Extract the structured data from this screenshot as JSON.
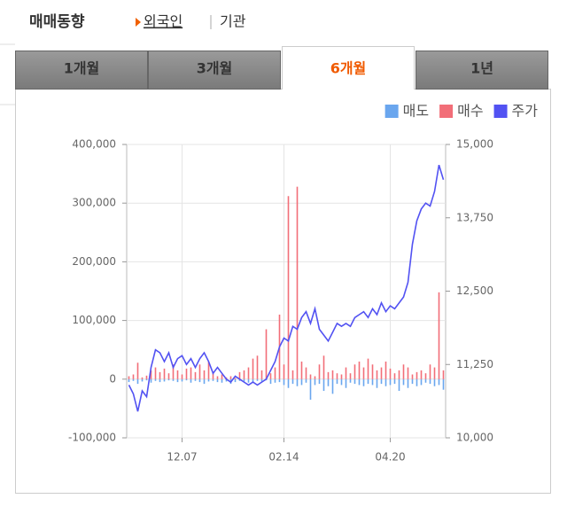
{
  "header": {
    "title": "매매동향",
    "investor_tabs": [
      "외국인",
      "기관"
    ]
  },
  "period_tabs": [
    "1개월",
    "3개월",
    "6개월",
    "1년"
  ],
  "chart_data": {
    "type": "bar",
    "categories": [
      null,
      null,
      null,
      null,
      null,
      null,
      null,
      null,
      null,
      null,
      null,
      null,
      "12.07",
      null,
      null,
      null,
      null,
      null,
      null,
      null,
      null,
      null,
      null,
      null,
      null,
      null,
      null,
      null,
      null,
      null,
      null,
      null,
      null,
      null,
      null,
      "02.14",
      null,
      null,
      null,
      null,
      null,
      null,
      null,
      null,
      null,
      null,
      null,
      null,
      null,
      null,
      null,
      null,
      null,
      null,
      null,
      null,
      null,
      null,
      null,
      "04.20",
      null,
      null,
      null,
      null,
      null,
      null,
      null,
      null,
      null,
      null,
      null,
      null
    ],
    "series": [
      {
        "name": "매도",
        "color": "#6aa6ee",
        "values": [
          -5000,
          -3000,
          -8000,
          -4000,
          -2000,
          -6000,
          -3000,
          -5000,
          -4000,
          -2000,
          -3000,
          -5000,
          -4000,
          -2000,
          -6000,
          -3000,
          -5000,
          -8000,
          -4000,
          -3000,
          -5000,
          -6000,
          -4000,
          -8000,
          -5000,
          -3000,
          -4000,
          -6000,
          -5000,
          -3000,
          -4000,
          -2000,
          -8000,
          -6000,
          -5000,
          -10000,
          -15000,
          -8000,
          -12000,
          -10000,
          -6000,
          -35000,
          -10000,
          -8000,
          -20000,
          -12000,
          -25000,
          -8000,
          -10000,
          -15000,
          -6000,
          -8000,
          -10000,
          -12000,
          -8000,
          -10000,
          -15000,
          -8000,
          -12000,
          -10000,
          -8000,
          -20000,
          -10000,
          -15000,
          -8000,
          -12000,
          -10000,
          -6000,
          -8000,
          -12000,
          -10000,
          -18000
        ]
      },
      {
        "name": "매수",
        "color": "#f26e78",
        "values": [
          5000,
          8000,
          28000,
          3000,
          6000,
          15000,
          20000,
          12000,
          18000,
          10000,
          25000,
          15000,
          8000,
          18000,
          20000,
          12000,
          25000,
          15000,
          30000,
          10000,
          5000,
          8000,
          3000,
          5000,
          2000,
          12000,
          15000,
          20000,
          35000,
          40000,
          15000,
          85000,
          10000,
          20000,
          110000,
          25000,
          312000,
          15000,
          328000,
          30000,
          20000,
          8000,
          5000,
          25000,
          40000,
          12000,
          15000,
          10000,
          8000,
          20000,
          10000,
          25000,
          30000,
          20000,
          35000,
          25000,
          15000,
          20000,
          30000,
          18000,
          10000,
          15000,
          25000,
          20000,
          8000,
          12000,
          15000,
          10000,
          25000,
          20000,
          148000,
          15000
        ]
      },
      {
        "name": "주가",
        "color": "#5252f2",
        "type": "line",
        "axis": "y2",
        "values": [
          10900,
          10750,
          10450,
          10800,
          10700,
          11200,
          11500,
          11450,
          11300,
          11450,
          11200,
          11350,
          11400,
          11250,
          11350,
          11200,
          11350,
          11450,
          11300,
          11100,
          11200,
          11100,
          11000,
          10950,
          11050,
          11000,
          10950,
          10900,
          10950,
          10900,
          10950,
          11000,
          11150,
          11300,
          11550,
          11700,
          11650,
          11900,
          11850,
          12050,
          12150,
          11950,
          12200,
          11850,
          11750,
          11650,
          11800,
          11950,
          11900,
          11950,
          11900,
          12050,
          12100,
          12150,
          12050,
          12200,
          12100,
          12300,
          12150,
          12250,
          12200,
          12300,
          12400,
          12650,
          13300,
          13700,
          13900,
          14000,
          13950,
          14200,
          14650,
          14400
        ]
      }
    ],
    "ylim": [
      -100000,
      400000
    ],
    "yticks": [
      {
        "value": -100000,
        "label": "-100,000"
      },
      0,
      {
        "value": 100000,
        "label": "100,000"
      },
      {
        "value": 200000,
        "label": "200,000"
      },
      {
        "value": 300000,
        "label": "300,000"
      },
      {
        "value": 400000,
        "label": "400,000"
      }
    ],
    "y2lim": [
      10000,
      15000
    ],
    "y2ticks": [
      {
        "value": 10000,
        "label": "10,000"
      },
      {
        "value": 11250,
        "label": "11,250"
      },
      {
        "value": 12500,
        "label": "12,500"
      },
      {
        "value": 13750,
        "label": "13,750"
      },
      {
        "value": 15000,
        "label": "15,000"
      }
    ],
    "grid": true,
    "legend": "top-right"
  }
}
